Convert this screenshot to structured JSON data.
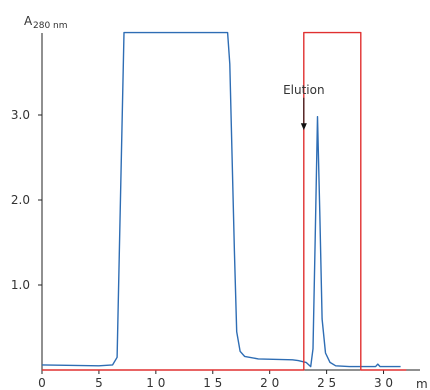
{
  "chart_data": {
    "type": "line",
    "title": "",
    "ylabel": "A",
    "ylabel_subscript": "280 nm",
    "xlabel": "m",
    "xlim": [
      0,
      32.5
    ],
    "ylim": [
      0,
      4.0
    ],
    "x_ticks": [
      0,
      5,
      10,
      15,
      20,
      25,
      30
    ],
    "x_tick_labels": [
      "0",
      "5",
      "1 0",
      "1 5",
      "2 0",
      "2 5",
      "3 0"
    ],
    "y_ticks": [
      1.0,
      2.0,
      3.0
    ],
    "y_tick_labels": [
      "1.0",
      "2.0",
      "3.0"
    ],
    "grid": false,
    "legend": "none",
    "series": [
      {
        "color": "#2e6db4",
        "x": [
          0.0,
          5.0,
          6.2,
          6.6,
          7.2,
          16.3,
          16.5,
          16.9,
          17.1,
          17.4,
          17.8,
          19.0,
          22.0,
          22.5,
          23.2,
          23.6,
          23.8,
          24.0,
          24.2,
          24.4,
          24.6,
          24.9,
          25.3,
          25.8,
          27.0,
          28.5,
          29.3,
          29.5,
          29.7,
          31.5
        ],
        "y": [
          0.06,
          0.05,
          0.06,
          0.15,
          3.97,
          3.97,
          3.6,
          1.4,
          0.45,
          0.22,
          0.16,
          0.13,
          0.12,
          0.11,
          0.09,
          0.04,
          0.25,
          1.55,
          2.98,
          1.85,
          0.6,
          0.2,
          0.09,
          0.05,
          0.04,
          0.04,
          0.04,
          0.07,
          0.04,
          0.04
        ]
      },
      {
        "color": "#e03030",
        "x": [
          0.0,
          23.0,
          23.0,
          28.0,
          28.0,
          32.0
        ],
        "y": [
          0.0,
          0.0,
          3.97,
          3.97,
          0.0,
          0.0
        ]
      }
    ],
    "annotations": [
      {
        "text": "Elution",
        "x": 23.0,
        "y": 3.25,
        "arrow_to_y": 2.82
      }
    ]
  }
}
